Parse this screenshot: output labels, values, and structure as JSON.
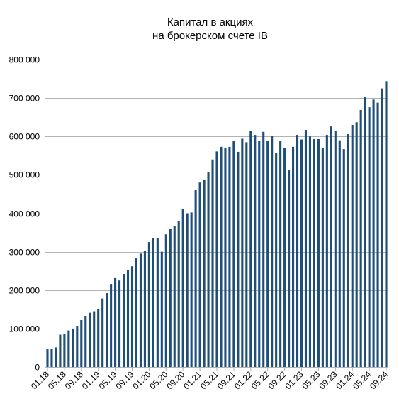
{
  "chart_data": {
    "type": "bar",
    "title_lines": [
      "Капитал в акциях",
      "на брокерском счете IB"
    ],
    "xlabel": "",
    "ylabel": "",
    "ylim": [
      0,
      800000
    ],
    "yticks": [
      "0",
      "100 000",
      "200 000",
      "300 000",
      "400 000",
      "500 000",
      "600 000",
      "700 000",
      "800 000"
    ],
    "grid": true,
    "bar_color": "#1f4e79",
    "xtick_labels": [
      "01.18",
      "05.18",
      "09.18",
      "01.19",
      "05.19",
      "09.19",
      "01.20",
      "05.20",
      "09.20",
      "01.21",
      "05.21",
      "09.21",
      "01.22",
      "05.22",
      "09.22",
      "01.23",
      "05.23",
      "09.23",
      "01.24",
      "05.24",
      "09.24"
    ],
    "series": [
      {
        "values": [
          47000,
          48000,
          51000,
          84000,
          85000,
          95000,
          100000,
          107000,
          122000,
          133000,
          141000,
          145000,
          150000,
          178000,
          192000,
          216000,
          233000,
          225000,
          242000,
          252000,
          262000,
          283000,
          295000,
          303000,
          325000,
          335000,
          335000,
          300000,
          345000,
          360000,
          366000,
          380000,
          411000,
          400000,
          402000,
          461000,
          480000,
          486000,
          507000,
          540000,
          561000,
          573000,
          571000,
          573000,
          588000,
          560000,
          594000,
          585000,
          614000,
          604000,
          588000,
          612000,
          588000,
          602000,
          557000,
          588000,
          571000,
          512000,
          573000,
          604000,
          592000,
          617000,
          600000,
          593000,
          593000,
          570000,
          604000,
          626000,
          615000,
          590000,
          567000,
          606000,
          630000,
          637000,
          669000,
          704000,
          676000,
          696000,
          688000,
          725000,
          744000
        ]
      }
    ]
  }
}
